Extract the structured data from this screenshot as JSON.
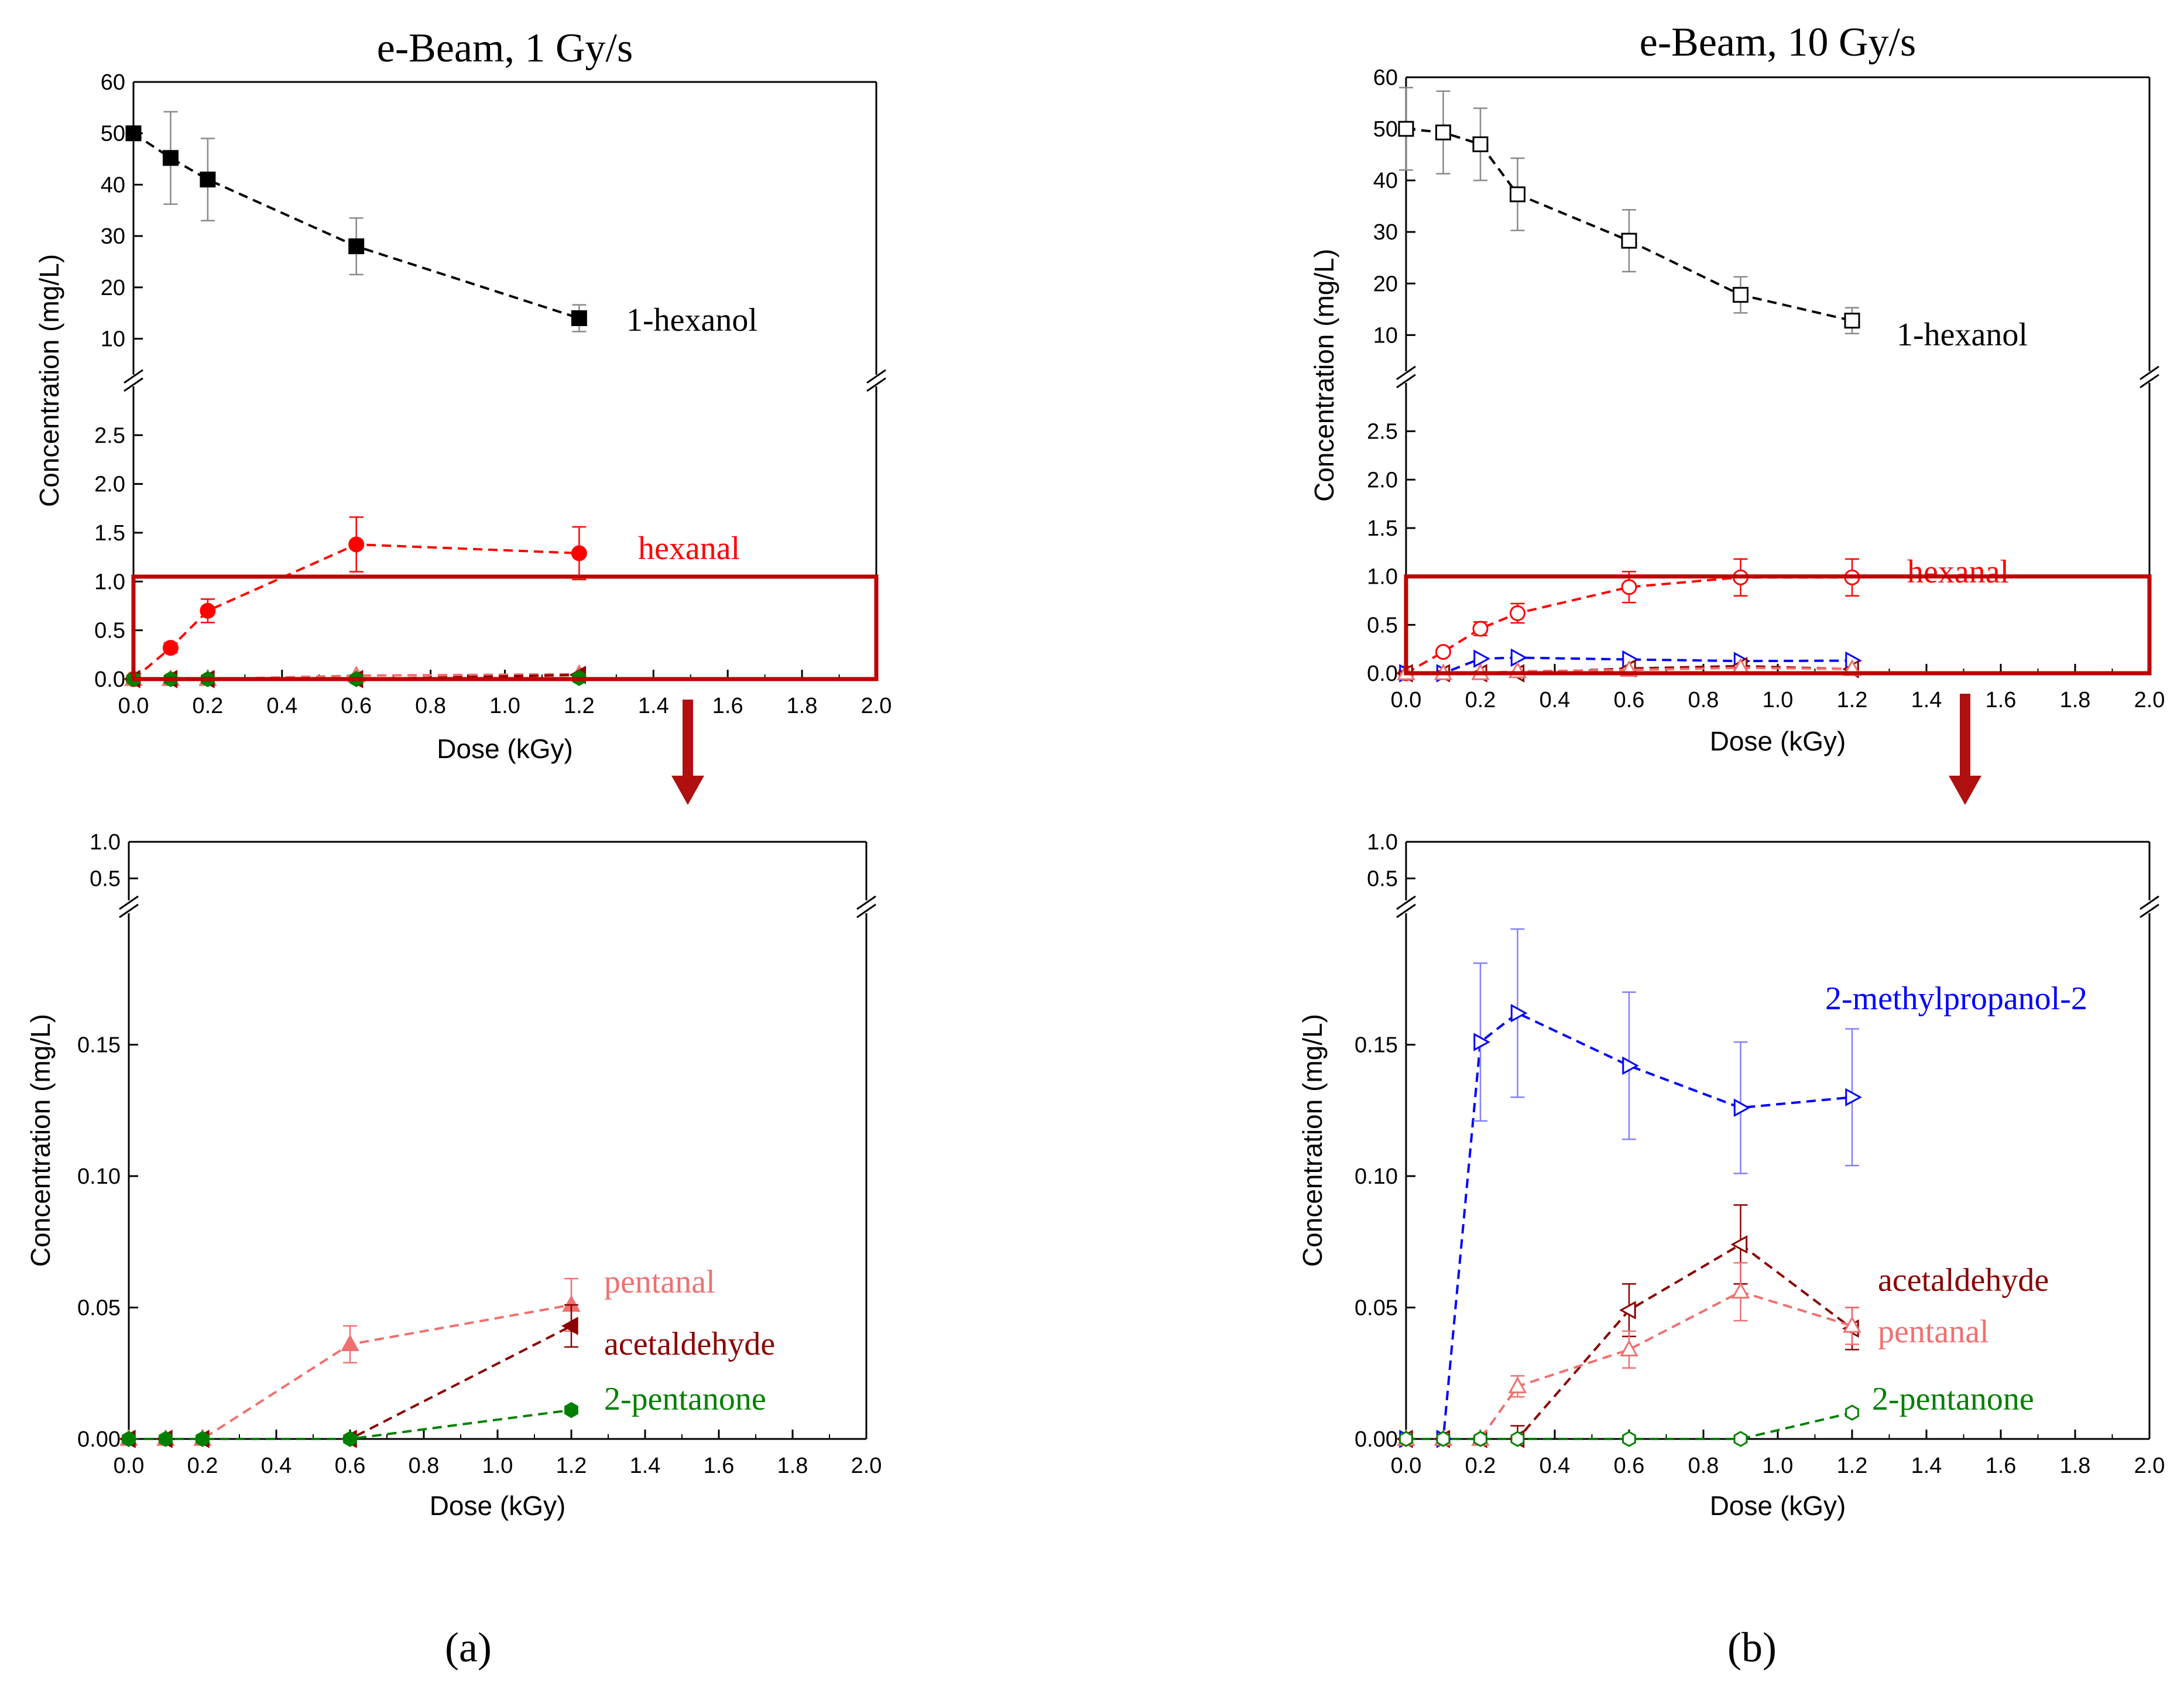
{
  "figure": {
    "panel_labels": [
      "(a)",
      "(b)"
    ],
    "zoom_box_color": "#c00000",
    "arrow_color": "#b01010"
  },
  "colors": {
    "hexanol": "#000000",
    "hexanol_errorbar": "#888888",
    "hexanal": "#ff0000",
    "pentanal": "#f07070",
    "acetaldehyde": "#8b0000",
    "pentanone": "#008000",
    "methylpropanol": "#0000ff",
    "methylpropanol_errorbar": "#8080ff"
  },
  "chart_data": [
    {
      "id": "a-top",
      "type": "line",
      "title": "e-Beam, 1 Gy/s",
      "xlabel": "Dose (kGy)",
      "ylabel": "Concentration (mg/L)",
      "xlim": [
        0,
        2.0
      ],
      "xticks": [
        "0.0",
        "0.2",
        "0.4",
        "0.6",
        "0.8",
        "1.0",
        "1.2",
        "1.4",
        "1.6",
        "1.8",
        "2.0"
      ],
      "broken_y_axis": true,
      "ylim_lower": [
        0,
        3
      ],
      "yticks_lower": [
        "0.0",
        "0.5",
        "1.0",
        "1.5",
        "2.0",
        "2.5"
      ],
      "ylim_upper": [
        3,
        60
      ],
      "yticks_upper": [
        "10",
        "20",
        "30",
        "40",
        "50",
        "60"
      ],
      "zoom_box": {
        "x_range": [
          0,
          2.0
        ],
        "y_range": [
          0,
          1.05
        ]
      },
      "series": [
        {
          "name": "1-hexanol",
          "color_key": "hexanol",
          "marker": "square",
          "filled": true,
          "x": [
            0,
            0.1,
            0.2,
            0.6,
            1.2
          ],
          "y": [
            50,
            45.2,
            41,
            28,
            14
          ],
          "err": [
            0,
            9,
            8,
            5.5,
            2.6
          ]
        },
        {
          "name": "hexanal",
          "color_key": "hexanal",
          "marker": "circle",
          "filled": true,
          "x": [
            0,
            0.1,
            0.2,
            0.6,
            1.2
          ],
          "y": [
            0,
            0.32,
            0.7,
            1.38,
            1.29
          ],
          "err": [
            0,
            0.05,
            0.12,
            0.28,
            0.27
          ]
        },
        {
          "name": "pentanal",
          "color_key": "pentanal",
          "marker": "triangle-up",
          "filled": true,
          "x": [
            0,
            0.1,
            0.2,
            0.6,
            1.2
          ],
          "y": [
            0,
            0,
            0,
            0.036,
            0.051
          ],
          "err": [
            0,
            0,
            0,
            0,
            0
          ]
        },
        {
          "name": "acetaldehyde",
          "color_key": "acetaldehyde",
          "marker": "triangle-left",
          "filled": true,
          "x": [
            0,
            0.1,
            0.2,
            0.6,
            1.2
          ],
          "y": [
            0,
            0,
            0,
            0,
            0.043
          ],
          "err": [
            0,
            0,
            0,
            0,
            0
          ]
        },
        {
          "name": "2-pentanone",
          "color_key": "pentanone",
          "marker": "hexagon",
          "filled": true,
          "x": [
            0,
            0.1,
            0.2,
            0.6,
            1.2
          ],
          "y": [
            0,
            0,
            0,
            0,
            0.011
          ],
          "err": [
            0,
            0,
            0,
            0,
            0
          ]
        }
      ],
      "annotations": [
        {
          "text": "1-hexanol",
          "color_key": "hexanol",
          "x": 1.3,
          "y": 14
        },
        {
          "text": "hexanal",
          "color_key": "hexanal",
          "x": 1.35,
          "y": 1.29
        }
      ]
    },
    {
      "id": "a-bottom",
      "type": "line",
      "xlabel": "Dose (kGy)",
      "ylabel": "Concentration (mg/L)",
      "xlim": [
        0,
        2.0
      ],
      "xticks": [
        "0.0",
        "0.2",
        "0.4",
        "0.6",
        "0.8",
        "1.0",
        "1.2",
        "1.4",
        "1.6",
        "1.8",
        "2.0"
      ],
      "broken_y_axis": true,
      "ylim_lower": [
        0,
        0.2
      ],
      "yticks_lower": [
        "0.00",
        "0.05",
        "0.10",
        "0.15"
      ],
      "ylim_upper": [
        0.2,
        1.0
      ],
      "yticks_upper": [
        "0.5",
        "1.0"
      ],
      "series": [
        {
          "name": "pentanal",
          "color_key": "pentanal",
          "marker": "triangle-up",
          "filled": true,
          "x": [
            0,
            0.1,
            0.2,
            0.6,
            1.2
          ],
          "y": [
            0,
            0,
            0,
            0.036,
            0.051
          ],
          "err": [
            0,
            0,
            0,
            0.007,
            0.01
          ]
        },
        {
          "name": "acetaldehyde",
          "color_key": "acetaldehyde",
          "marker": "triangle-left",
          "filled": true,
          "x": [
            0,
            0.1,
            0.2,
            0.6,
            1.2
          ],
          "y": [
            0,
            0,
            0,
            0,
            0.043
          ],
          "err": [
            0,
            0,
            0,
            0,
            0.008
          ]
        },
        {
          "name": "2-pentanone",
          "color_key": "pentanone",
          "marker": "hexagon",
          "filled": true,
          "x": [
            0,
            0.1,
            0.2,
            0.6,
            1.2
          ],
          "y": [
            0,
            0,
            0,
            0,
            0.011
          ],
          "err": [
            0,
            0,
            0,
            0,
            0
          ]
        }
      ],
      "annotations": [
        {
          "text": "pentanal",
          "color_key": "pentanal",
          "x": 1.3,
          "y": 0.057
        },
        {
          "text": "acetaldehyde",
          "color_key": "acetaldehyde",
          "x": 1.3,
          "y": 0.035
        },
        {
          "text": "2-pentanone",
          "color_key": "pentanone",
          "x": 1.3,
          "y": 0.014
        }
      ]
    },
    {
      "id": "b-top",
      "type": "line",
      "title": "e-Beam, 10 Gy/s",
      "xlabel": "Dose (kGy)",
      "ylabel": "Concentration (mg/L)",
      "xlim": [
        0,
        2.0
      ],
      "xticks": [
        "0.0",
        "0.2",
        "0.4",
        "0.6",
        "0.8",
        "1.0",
        "1.2",
        "1.4",
        "1.6",
        "1.8",
        "2.0"
      ],
      "broken_y_axis": true,
      "ylim_lower": [
        0,
        3
      ],
      "yticks_lower": [
        "0.0",
        "0.5",
        "1.0",
        "1.5",
        "2.0",
        "2.5"
      ],
      "ylim_upper": [
        3,
        60
      ],
      "yticks_upper": [
        "10",
        "20",
        "30",
        "40",
        "50",
        "60"
      ],
      "zoom_box": {
        "x_range": [
          0,
          2.0
        ],
        "y_range": [
          0,
          1.0
        ]
      },
      "series": [
        {
          "name": "1-hexanol",
          "color_key": "hexanol",
          "marker": "square",
          "filled": false,
          "x": [
            0,
            0.1,
            0.2,
            0.3,
            0.6,
            0.9,
            1.2
          ],
          "y": [
            50,
            49.3,
            47,
            37.3,
            28.3,
            17.8,
            12.8
          ],
          "err": [
            8,
            8,
            7,
            7,
            6,
            3.5,
            2.5
          ]
        },
        {
          "name": "hexanal",
          "color_key": "hexanal",
          "marker": "circle",
          "filled": false,
          "x": [
            0,
            0.1,
            0.2,
            0.3,
            0.6,
            0.9,
            1.2
          ],
          "y": [
            0,
            0.22,
            0.46,
            0.62,
            0.89,
            0.99,
            0.99
          ],
          "err": [
            0,
            0,
            0.07,
            0.1,
            0.16,
            0.19,
            0.19
          ]
        },
        {
          "name": "2-methylpropanol-2",
          "color_key": "methylpropanol",
          "marker": "triangle-right",
          "filled": false,
          "x": [
            0,
            0.1,
            0.2,
            0.3,
            0.6,
            0.9,
            1.2
          ],
          "y": [
            0,
            0,
            0.15,
            0.161,
            0.142,
            0.126,
            0.13
          ],
          "err": [
            0,
            0,
            0,
            0,
            0,
            0,
            0
          ]
        },
        {
          "name": "acetaldehyde",
          "color_key": "acetaldehyde",
          "marker": "triangle-left",
          "filled": false,
          "x": [
            0,
            0.1,
            0.2,
            0.3,
            0.6,
            0.9,
            1.2
          ],
          "y": [
            0,
            0,
            0,
            0,
            0.049,
            0.074,
            0.042
          ],
          "err": [
            0,
            0,
            0,
            0,
            0,
            0,
            0
          ]
        },
        {
          "name": "pentanal",
          "color_key": "pentanal",
          "marker": "triangle-up",
          "filled": false,
          "x": [
            0,
            0.1,
            0.2,
            0.3,
            0.6,
            0.9,
            1.2
          ],
          "y": [
            0,
            0,
            0,
            0.02,
            0.034,
            0.056,
            0.043
          ],
          "err": [
            0,
            0,
            0,
            0,
            0,
            0,
            0
          ]
        }
      ],
      "annotations": [
        {
          "text": "1-hexanol",
          "color_key": "hexanol",
          "x": 1.33,
          "y": 12
        },
        {
          "text": "hexanal",
          "color_key": "hexanal",
          "x": 1.35,
          "y": 0.99
        }
      ]
    },
    {
      "id": "b-bottom",
      "type": "line",
      "xlabel": "Dose (kGy)",
      "ylabel": "Concentration (mg/L)",
      "xlim": [
        0,
        2.0
      ],
      "xticks": [
        "0.0",
        "0.2",
        "0.4",
        "0.6",
        "0.8",
        "1.0",
        "1.2",
        "1.4",
        "1.6",
        "1.8",
        "2.0"
      ],
      "broken_y_axis": true,
      "ylim_lower": [
        0,
        0.2
      ],
      "yticks_lower": [
        "0.00",
        "0.05",
        "0.10",
        "0.15"
      ],
      "ylim_upper": [
        0.2,
        1.0
      ],
      "yticks_upper": [
        "0.5",
        "1.0"
      ],
      "series": [
        {
          "name": "2-methylpropanol-2",
          "color_key": "methylpropanol",
          "marker": "triangle-right",
          "filled": false,
          "x": [
            0,
            0.1,
            0.2,
            0.3,
            0.6,
            0.9,
            1.2
          ],
          "y": [
            0,
            0,
            0.151,
            0.162,
            0.142,
            0.126,
            0.13
          ],
          "err": [
            0,
            0,
            0.03,
            0.032,
            0.028,
            0.025,
            0.026
          ]
        },
        {
          "name": "acetaldehyde",
          "color_key": "acetaldehyde",
          "marker": "triangle-left",
          "filled": false,
          "x": [
            0,
            0.1,
            0.2,
            0.3,
            0.6,
            0.9,
            1.2
          ],
          "y": [
            0,
            0,
            0,
            0,
            0.049,
            0.074,
            0.042
          ],
          "err": [
            0,
            0,
            0,
            0.005,
            0.01,
            0.015,
            0.008
          ]
        },
        {
          "name": "pentanal",
          "color_key": "pentanal",
          "marker": "triangle-up",
          "filled": false,
          "x": [
            0,
            0.1,
            0.2,
            0.3,
            0.6,
            0.9,
            1.2
          ],
          "y": [
            0,
            0,
            0,
            0.02,
            0.034,
            0.056,
            0.043
          ],
          "err": [
            0,
            0,
            0,
            0.004,
            0.007,
            0.011,
            0.007
          ]
        },
        {
          "name": "2-pentanone",
          "color_key": "pentanone",
          "marker": "hexagon",
          "filled": false,
          "x": [
            0,
            0.1,
            0.2,
            0.3,
            0.6,
            0.9,
            1.2
          ],
          "y": [
            0,
            0,
            0,
            0,
            0,
            0,
            0.01
          ],
          "err": [
            0,
            0,
            0,
            0,
            0,
            0,
            0
          ]
        }
      ],
      "annotations": [
        {
          "text": "2-methylpropanol-2",
          "color_key": "methylpropanol",
          "x": 1.15,
          "y": 0.162
        },
        {
          "text": "acetaldehyde",
          "color_key": "acetaldehyde",
          "x": 1.3,
          "y": 0.058
        },
        {
          "text": "pentanal",
          "color_key": "pentanal",
          "x": 1.3,
          "y": 0.037
        },
        {
          "text": "2-pentanone",
          "color_key": "pentanone",
          "x": 1.3,
          "y": 0.011
        }
      ]
    }
  ]
}
